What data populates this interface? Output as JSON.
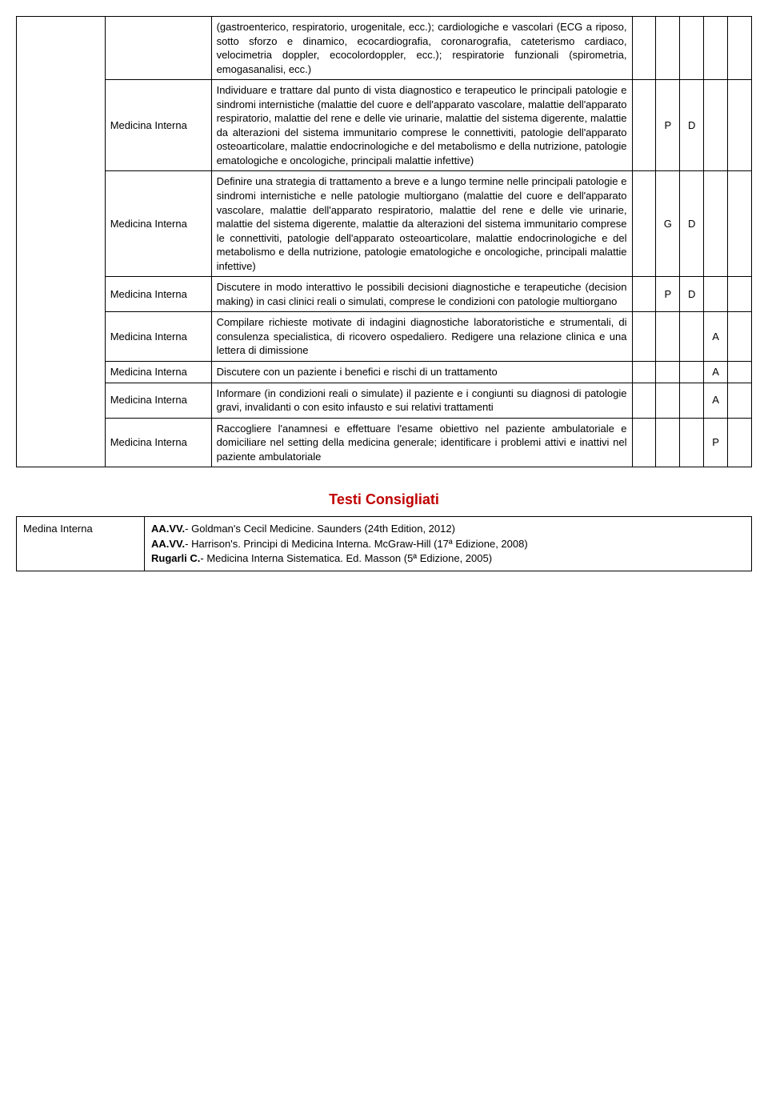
{
  "table": {
    "label_col1": "Medicina Interna",
    "rows": [
      {
        "desc": "(gastroenterico, respiratorio, urogenitale, ecc.); cardiologiche e vascolari (ECG a riposo, sotto sforzo e dinamico, ecocardiografia, coronarografia, cateterismo cardiaco, velocimetria doppler, ecocolordoppler, ecc.); respiratorie funzionali (spirometria, emogasanalisi, ecc.)",
        "c4": "",
        "c5": "",
        "c6": "",
        "c7": "",
        "c8": "",
        "show_label": false
      },
      {
        "desc": "Individuare e trattare dal punto di vista diagnostico e terapeutico le principali patologie e sindromi internistiche (malattie del cuore e dell'apparato vascolare, malattie dell'apparato respiratorio, malattie del rene e delle vie urinarie, malattie del sistema digerente, malattie da alterazioni del sistema immunitario comprese le connettiviti, patologie dell'apparato osteoarticolare, malattie endocrinologiche e del metabolismo e della nutrizione, patologie ematologiche e oncologiche, principali malattie infettive)",
        "c4": "",
        "c5": "P",
        "c6": "D",
        "c7": "",
        "c8": "",
        "show_label": true
      },
      {
        "desc": "Definire una strategia di trattamento a breve e a lungo termine nelle principali patologie e sindromi internistiche e nelle patologie multiorgano (malattie del cuore e dell'apparato vascolare, malattie dell'apparato respiratorio, malattie del rene e delle vie urinarie, malattie del sistema digerente, malattie da alterazioni del sistema immunitario comprese le connettiviti, patologie dell'apparato osteoarticolare, malattie endocrinologiche e del metabolismo e della nutrizione, patologie ematologiche e oncologiche, principali malattie infettive)",
        "c4": "",
        "c5": "G",
        "c6": "D",
        "c7": "",
        "c8": "",
        "show_label": true
      },
      {
        "desc": "Discutere in modo interattivo le possibili decisioni diagnostiche e terapeutiche (decision making) in casi clinici reali o simulati, comprese le condizioni con patologie multiorgano",
        "c4": "",
        "c5": "P",
        "c6": "D",
        "c7": "",
        "c8": "",
        "show_label": true
      },
      {
        "desc": "Compilare richieste motivate di indagini diagnostiche laboratoristiche e strumentali, di consulenza specialistica, di ricovero ospedaliero. Redigere una relazione clinica e una lettera di dimissione",
        "c4": "",
        "c5": "",
        "c6": "",
        "c7": "A",
        "c8": "",
        "show_label": true
      },
      {
        "desc": "Discutere con un paziente i benefici e rischi di un trattamento",
        "c4": "",
        "c5": "",
        "c6": "",
        "c7": "A",
        "c8": "",
        "show_label": true
      },
      {
        "desc": "Informare (in condizioni reali o simulate) il paziente e i congiunti su diagnosi di patologie gravi, invalidanti o con esito infausto e sui relativi trattamenti",
        "c4": "",
        "c5": "",
        "c6": "",
        "c7": "A",
        "c8": "",
        "show_label": true
      },
      {
        "desc": "Raccogliere l'anamnesi e effettuare l'esame obiettivo nel paziente ambulatoriale e domiciliare nel setting della medicina generale; identificare i problemi attivi e inattivi nel paziente ambulatoriale",
        "c4": "",
        "c5": "",
        "c6": "",
        "c7": "P",
        "c8": "",
        "show_label": true
      }
    ]
  },
  "section_heading": {
    "text": "Testi Consigliati",
    "color": "#c00000",
    "fontsize": 18,
    "fontweight": "bold"
  },
  "references": {
    "label": "Medina Interna",
    "lines": [
      {
        "bold": "AA.VV.",
        "rest": "- Goldman's Cecil Medicine. Saunders (24th Edition, 2012)"
      },
      {
        "bold": "AA.VV.",
        "rest": "- Harrison's. Principi di Medicina Interna. McGraw-Hill (17ª Edizione, 2008)"
      },
      {
        "bold": "Rugarli C.",
        "rest": "- Medicina Interna Sistematica. Ed. Masson (5ª Edizione, 2005)"
      }
    ]
  }
}
